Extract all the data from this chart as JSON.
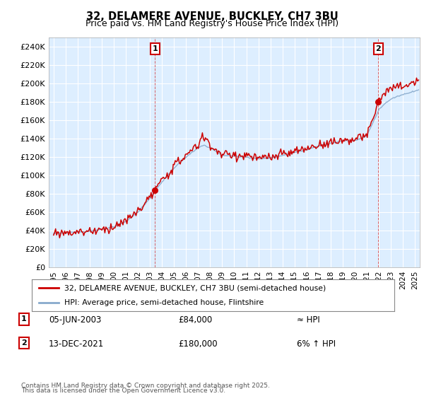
{
  "title": "32, DELAMERE AVENUE, BUCKLEY, CH7 3BU",
  "subtitle": "Price paid vs. HM Land Registry's House Price Index (HPI)",
  "legend_entry1": "32, DELAMERE AVENUE, BUCKLEY, CH7 3BU (semi-detached house)",
  "legend_entry2": "HPI: Average price, semi-detached house, Flintshire",
  "annotation1_date": "05-JUN-2003",
  "annotation1_price": "£84,000",
  "annotation1_hpi": "≈ HPI",
  "annotation2_date": "13-DEC-2021",
  "annotation2_price": "£180,000",
  "annotation2_hpi": "6% ↑ HPI",
  "footnote1": "Contains HM Land Registry data © Crown copyright and database right 2025.",
  "footnote2": "This data is licensed under the Open Government Licence v3.0.",
  "line_color": "#cc0000",
  "hpi_color": "#88aacc",
  "background_color": "#ddeeff",
  "plot_bg_color": "#ddeeff",
  "ylim": [
    0,
    250000
  ],
  "yticks": [
    0,
    20000,
    40000,
    60000,
    80000,
    100000,
    120000,
    140000,
    160000,
    180000,
    200000,
    220000,
    240000
  ],
  "ytick_labels": [
    "£0",
    "£20K",
    "£40K",
    "£60K",
    "£80K",
    "£100K",
    "£120K",
    "£140K",
    "£160K",
    "£180K",
    "£200K",
    "£220K",
    "£240K"
  ],
  "marker1_x": 2003.42,
  "marker1_y": 84000,
  "marker2_x": 2021.95,
  "marker2_y": 180000,
  "xmin": 1994.6,
  "xmax": 2025.4
}
